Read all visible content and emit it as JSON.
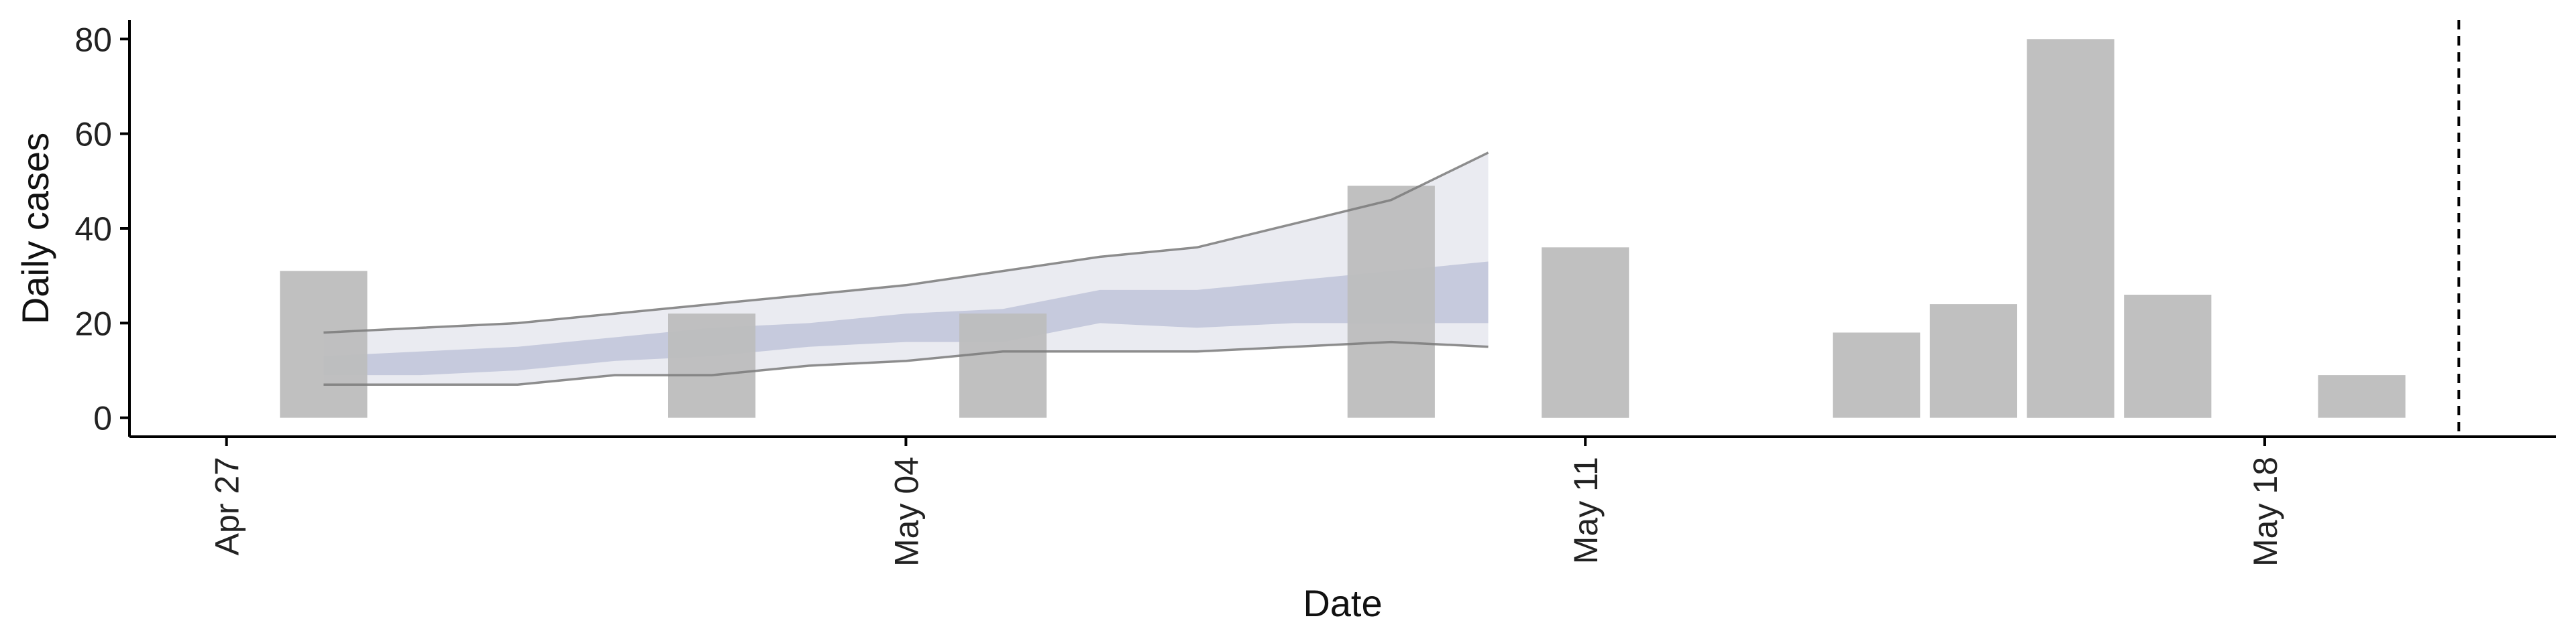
{
  "chart_data": {
    "type": "bar",
    "xlabel": "Date",
    "ylabel": "Daily cases",
    "ylim": [
      -4,
      84
    ],
    "xlim": [
      "2020-04-26",
      "2020-05-21"
    ],
    "y_ticks": [
      0,
      20,
      40,
      60,
      80
    ],
    "x_ticks": [
      {
        "date": "2020-04-27",
        "label": "Apr 27"
      },
      {
        "date": "2020-05-04",
        "label": "May 04"
      },
      {
        "date": "2020-05-11",
        "label": "May 11"
      },
      {
        "date": "2020-05-18",
        "label": "May 18"
      }
    ],
    "grid": false,
    "bars": [
      {
        "date": "2020-04-28",
        "value": 31
      },
      {
        "date": "2020-05-02",
        "value": 22
      },
      {
        "date": "2020-05-05",
        "value": 22
      },
      {
        "date": "2020-05-09",
        "value": 49
      },
      {
        "date": "2020-05-11",
        "value": 36
      },
      {
        "date": "2020-05-14",
        "value": 18
      },
      {
        "date": "2020-05-15",
        "value": 24
      },
      {
        "date": "2020-05-16",
        "value": 80
      },
      {
        "date": "2020-05-17",
        "value": 26
      },
      {
        "date": "2020-05-19",
        "value": 9
      }
    ],
    "estimate": {
      "dates": [
        "2020-04-28",
        "2020-04-29",
        "2020-04-30",
        "2020-05-01",
        "2020-05-02",
        "2020-05-03",
        "2020-05-04",
        "2020-05-05",
        "2020-05-06",
        "2020-05-07",
        "2020-05-08",
        "2020-05-09",
        "2020-05-10"
      ],
      "outer_upper": [
        18,
        19,
        20,
        22,
        24,
        26,
        28,
        31,
        34,
        36,
        41,
        46,
        56
      ],
      "outer_lower": [
        7,
        7,
        7,
        9,
        9,
        11,
        12,
        14,
        14,
        14,
        15,
        16,
        15
      ],
      "inner_upper": [
        13,
        14,
        15,
        17,
        19,
        20,
        22,
        23,
        27,
        27,
        29,
        31,
        33
      ],
      "inner_lower": [
        9,
        9,
        10,
        12,
        13,
        15,
        16,
        16,
        20,
        19,
        20,
        20,
        20
      ]
    },
    "vline_date": "2020-05-20",
    "colors": {
      "bar": "#bdbdbd",
      "outer_band": "#e8e9f0",
      "inner_band": "#b9bfd6",
      "ribbon_line": "#7a7a7a",
      "axis": "#000000",
      "vline": "#000000"
    }
  }
}
